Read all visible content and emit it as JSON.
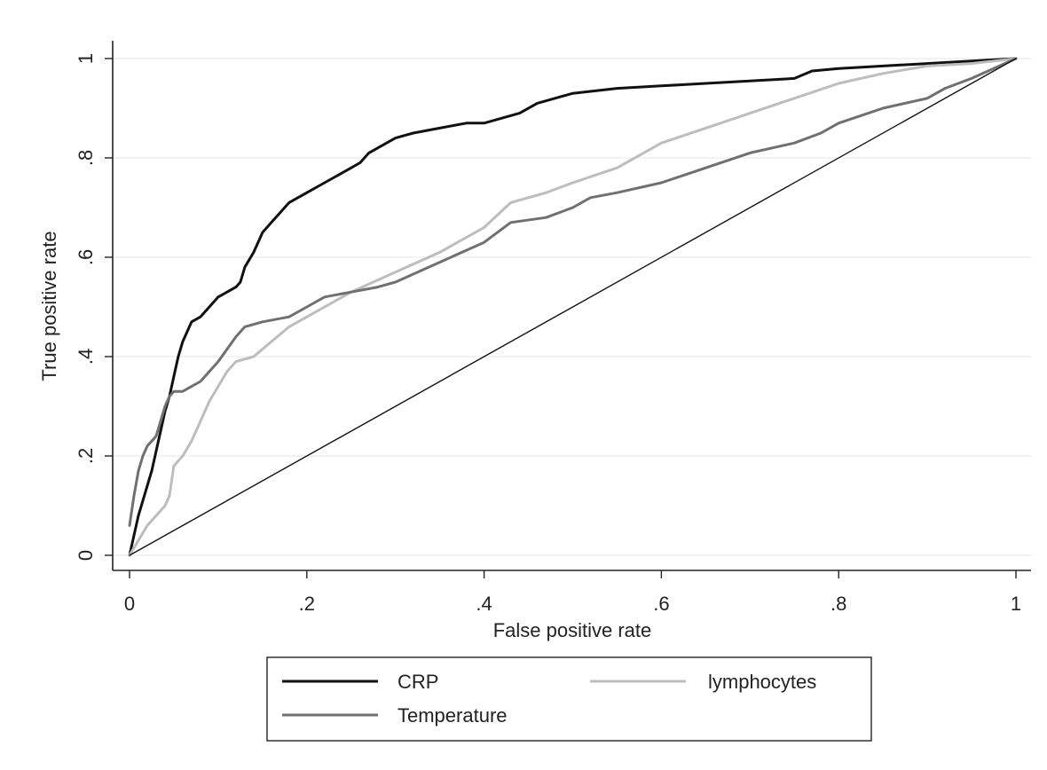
{
  "chart_data": {
    "type": "line",
    "xlabel": "False positive rate",
    "ylabel": "True positive rate",
    "xlim": [
      0,
      1
    ],
    "ylim": [
      0,
      1
    ],
    "x_ticks": [
      0,
      0.2,
      0.4,
      0.6,
      0.8,
      1
    ],
    "x_tick_labels": [
      "0",
      ".2",
      ".4",
      ".6",
      ".8",
      "1"
    ],
    "y_ticks": [
      0,
      0.2,
      0.4,
      0.6,
      0.8,
      1
    ],
    "y_tick_labels": [
      "0",
      ".2",
      ".4",
      ".6",
      ".8",
      "1"
    ],
    "grid": "horizontal",
    "legend_position": "bottom",
    "series": [
      {
        "name": "CRP",
        "color": "#111111",
        "x": [
          0,
          0.005,
          0.01,
          0.015,
          0.02,
          0.025,
          0.03,
          0.035,
          0.04,
          0.045,
          0.05,
          0.055,
          0.06,
          0.065,
          0.07,
          0.08,
          0.09,
          0.1,
          0.11,
          0.12,
          0.125,
          0.13,
          0.14,
          0.15,
          0.16,
          0.17,
          0.18,
          0.19,
          0.2,
          0.22,
          0.24,
          0.26,
          0.27,
          0.28,
          0.3,
          0.32,
          0.35,
          0.38,
          0.4,
          0.42,
          0.44,
          0.46,
          0.48,
          0.5,
          0.55,
          0.6,
          0.65,
          0.7,
          0.75,
          0.77,
          0.8,
          0.85,
          0.9,
          0.95,
          1
        ],
        "y": [
          0,
          0.04,
          0.08,
          0.11,
          0.14,
          0.17,
          0.21,
          0.25,
          0.29,
          0.32,
          0.36,
          0.4,
          0.43,
          0.45,
          0.47,
          0.48,
          0.5,
          0.52,
          0.53,
          0.54,
          0.55,
          0.58,
          0.61,
          0.65,
          0.67,
          0.69,
          0.71,
          0.72,
          0.73,
          0.75,
          0.77,
          0.79,
          0.81,
          0.82,
          0.84,
          0.85,
          0.86,
          0.87,
          0.87,
          0.88,
          0.89,
          0.91,
          0.92,
          0.93,
          0.94,
          0.945,
          0.95,
          0.955,
          0.96,
          0.975,
          0.98,
          0.985,
          0.99,
          0.995,
          1
        ]
      },
      {
        "name": "lymphocytes",
        "color": "#bdbdbd",
        "x": [
          0,
          0.01,
          0.02,
          0.03,
          0.04,
          0.045,
          0.05,
          0.06,
          0.07,
          0.08,
          0.09,
          0.1,
          0.11,
          0.12,
          0.14,
          0.16,
          0.18,
          0.2,
          0.25,
          0.3,
          0.35,
          0.4,
          0.43,
          0.47,
          0.5,
          0.55,
          0.58,
          0.6,
          0.65,
          0.7,
          0.75,
          0.8,
          0.85,
          0.9,
          0.95,
          1
        ],
        "y": [
          0,
          0.03,
          0.06,
          0.08,
          0.1,
          0.12,
          0.18,
          0.2,
          0.23,
          0.27,
          0.31,
          0.34,
          0.37,
          0.39,
          0.4,
          0.43,
          0.46,
          0.48,
          0.53,
          0.57,
          0.61,
          0.66,
          0.71,
          0.73,
          0.75,
          0.78,
          0.81,
          0.83,
          0.86,
          0.89,
          0.92,
          0.95,
          0.97,
          0.985,
          0.99,
          1
        ]
      },
      {
        "name": "Temperature",
        "color": "#707070",
        "x": [
          0,
          0.005,
          0.01,
          0.015,
          0.02,
          0.03,
          0.035,
          0.04,
          0.045,
          0.05,
          0.06,
          0.07,
          0.08,
          0.1,
          0.12,
          0.13,
          0.15,
          0.18,
          0.2,
          0.22,
          0.25,
          0.28,
          0.3,
          0.35,
          0.4,
          0.43,
          0.47,
          0.5,
          0.52,
          0.55,
          0.6,
          0.65,
          0.7,
          0.75,
          0.78,
          0.8,
          0.85,
          0.9,
          0.92,
          0.95,
          1
        ],
        "y": [
          0.06,
          0.12,
          0.17,
          0.2,
          0.22,
          0.24,
          0.27,
          0.3,
          0.32,
          0.33,
          0.33,
          0.34,
          0.35,
          0.39,
          0.44,
          0.46,
          0.47,
          0.48,
          0.5,
          0.52,
          0.53,
          0.54,
          0.55,
          0.59,
          0.63,
          0.67,
          0.68,
          0.7,
          0.72,
          0.73,
          0.75,
          0.78,
          0.81,
          0.83,
          0.85,
          0.87,
          0.9,
          0.92,
          0.94,
          0.96,
          1
        ]
      },
      {
        "name": "",
        "color": "#111111",
        "x": [
          0,
          1
        ],
        "y": [
          0,
          1
        ]
      }
    ],
    "legend": [
      {
        "label": "CRP",
        "color": "#111111"
      },
      {
        "label": "lymphocytes",
        "color": "#bdbdbd"
      },
      {
        "label": "Temperature",
        "color": "#707070"
      }
    ]
  }
}
